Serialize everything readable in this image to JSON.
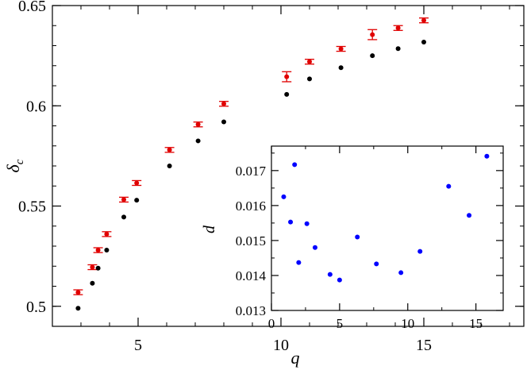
{
  "chart_data": [
    {
      "type": "scatter",
      "title": "",
      "xlabel": "q",
      "ylabel": "δ_c",
      "ylabel_main": "δ",
      "ylabel_sub": "c",
      "xlim": [
        2,
        18.5
      ],
      "ylim": [
        0.49,
        0.65
      ],
      "xticks": [
        5,
        10,
        15
      ],
      "yticks": [
        0.5,
        0.55,
        0.6,
        0.65
      ],
      "ytick_labels": [
        "0.5",
        "0.55",
        "0.6",
        "0.65"
      ],
      "grid": false,
      "series": [
        {
          "color": "#e00000",
          "marker": "circle-with-errorbar",
          "x": [
            2.9,
            3.4,
            3.6,
            3.9,
            4.5,
            4.95,
            6.1,
            7.1,
            8.0,
            10.2,
            11.0,
            12.1,
            13.2,
            14.1,
            15.0
          ],
          "y": [
            0.507,
            0.5195,
            0.528,
            0.536,
            0.5532,
            0.5615,
            0.578,
            0.5907,
            0.601,
            0.6145,
            0.622,
            0.6284,
            0.6355,
            0.6388,
            0.6426
          ],
          "err": [
            0.0012,
            0.0012,
            0.0012,
            0.0012,
            0.0012,
            0.0012,
            0.0012,
            0.0012,
            0.0012,
            0.0025,
            0.0012,
            0.0012,
            0.0025,
            0.0012,
            0.0012
          ]
        },
        {
          "color": "#000000",
          "marker": "circle",
          "x": [
            2.9,
            3.4,
            3.6,
            3.9,
            4.5,
            4.95,
            6.1,
            7.1,
            8.0,
            10.2,
            11.0,
            12.1,
            13.2,
            14.1,
            15.0
          ],
          "y": [
            0.499,
            0.5115,
            0.519,
            0.528,
            0.5445,
            0.5529,
            0.57,
            0.5825,
            0.592,
            0.6057,
            0.6134,
            0.619,
            0.625,
            0.6285,
            0.6318
          ]
        }
      ]
    },
    {
      "type": "scatter",
      "title": "",
      "xlabel": "q",
      "ylabel": "d",
      "xlim": [
        0,
        17
      ],
      "ylim": [
        0.013,
        0.0177
      ],
      "xticks": [
        0,
        5,
        10,
        15
      ],
      "yticks": [
        0.013,
        0.014,
        0.015,
        0.016,
        0.017
      ],
      "ytick_labels": [
        "0.013",
        "0.014",
        "0.015",
        "0.016",
        "0.017"
      ],
      "grid": false,
      "series": [
        {
          "color": "#0000ff",
          "marker": "circle",
          "x": [
            0.9,
            1.4,
            1.7,
            2.0,
            2.6,
            3.2,
            4.3,
            5.0,
            6.3,
            7.7,
            9.5,
            10.9,
            13.0,
            14.5,
            15.8
          ],
          "y": [
            0.01625,
            0.01553,
            0.01717,
            0.01437,
            0.01548,
            0.0148,
            0.01403,
            0.01387,
            0.0151,
            0.01433,
            0.01408,
            0.01469,
            0.01655,
            0.01572,
            0.01741
          ]
        }
      ]
    }
  ]
}
